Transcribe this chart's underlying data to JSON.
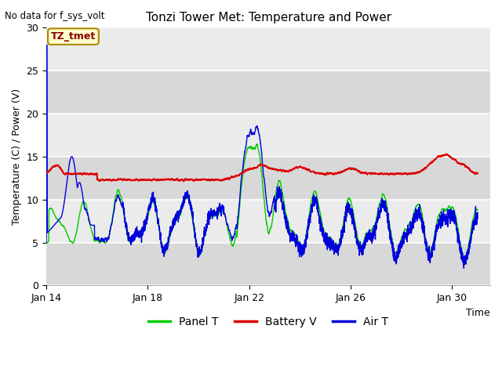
{
  "title": "Tonzi Tower Met: Temperature and Power",
  "xlabel": "Time",
  "ylabel": "Temperature (C) / Power (V)",
  "top_left_text": "No data for f_sys_volt",
  "legend_label_text": "TZ_tmet",
  "ylim": [
    0,
    30
  ],
  "yticks": [
    0,
    5,
    10,
    15,
    20,
    25,
    30
  ],
  "xtick_labels": [
    "Jan 14",
    "Jan 18",
    "Jan 22",
    "Jan 26",
    "Jan 30"
  ],
  "xtick_positions": [
    0,
    4,
    8,
    12,
    16
  ],
  "xlim": [
    0,
    17.5
  ],
  "bg_color": "#ebebeb",
  "fig_color": "#ffffff",
  "grid_color": "#ffffff",
  "panel_t_color": "#00cc00",
  "battery_v_color": "#dd0000",
  "air_t_color": "#0000dd",
  "legend_entries": [
    "Panel T",
    "Battery V",
    "Air T"
  ],
  "legend_colors": [
    "#00cc00",
    "#dd0000",
    "#0000dd"
  ],
  "title_fontsize": 11,
  "label_fontsize": 9,
  "tick_fontsize": 9
}
